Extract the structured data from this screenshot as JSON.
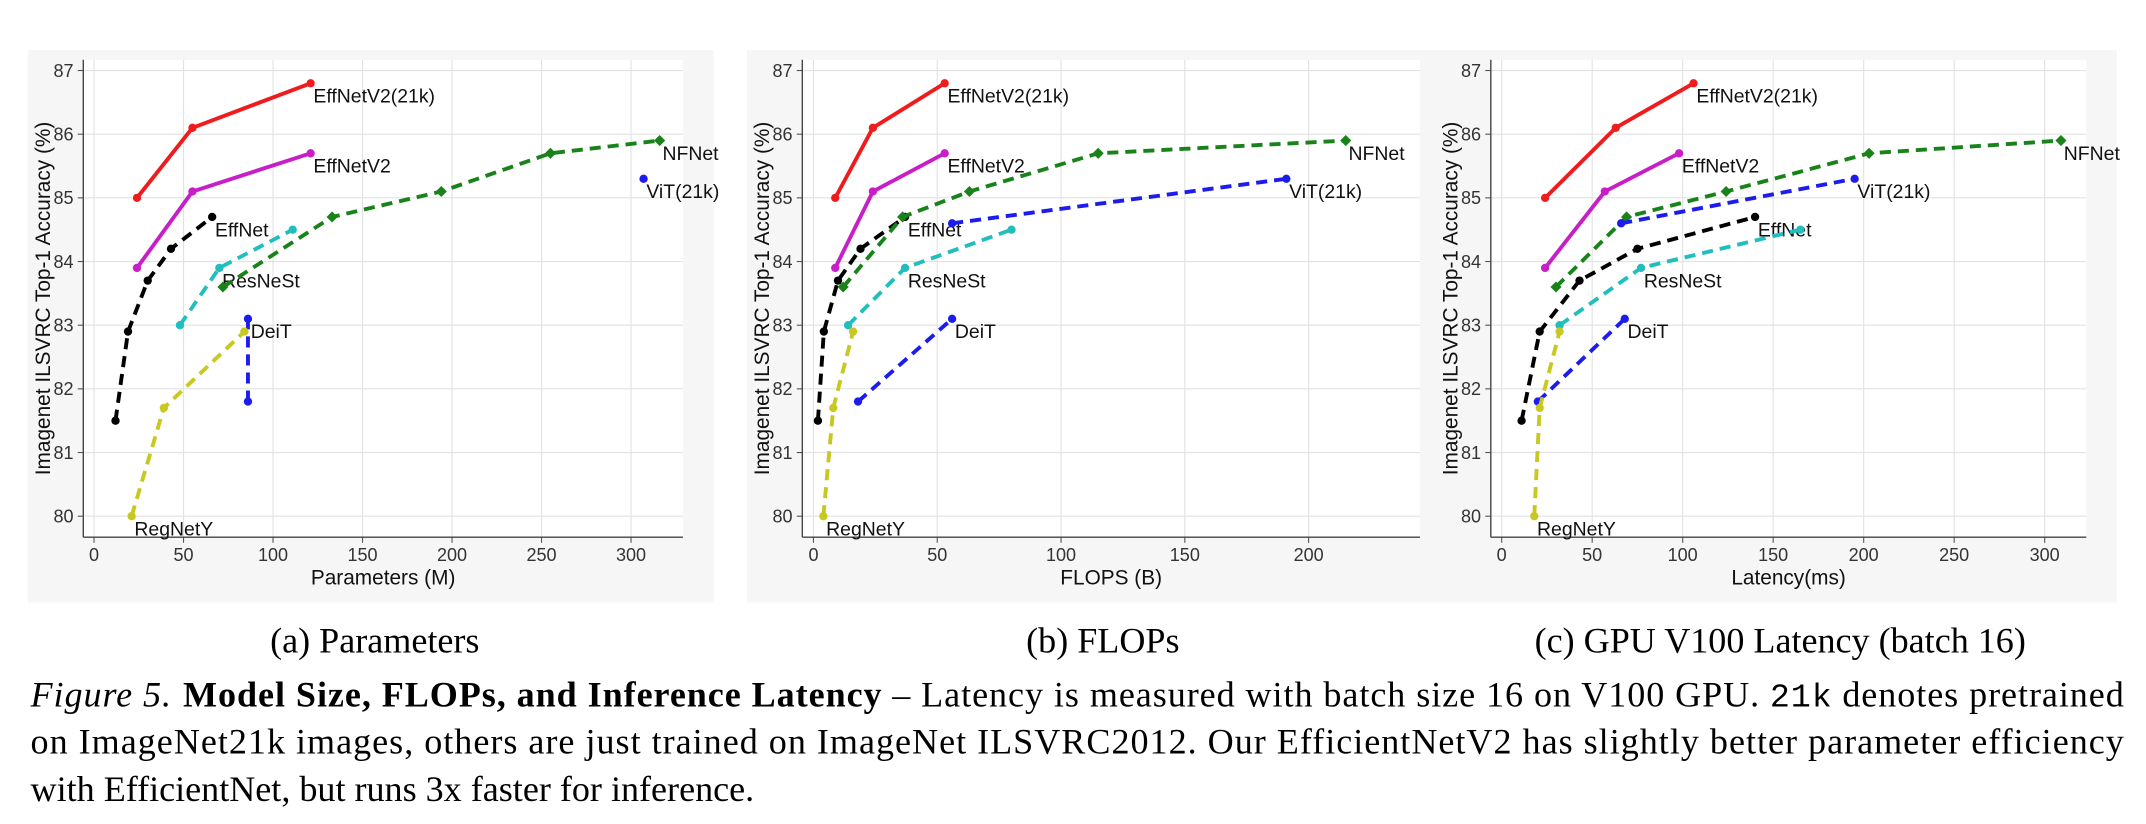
{
  "chart_data": [
    {
      "type": "line",
      "caption": "(a) Parameters",
      "xlabel": "Parameters (M)",
      "ylabel": "Imagenet ILSVRC Top-1 Accuracy (%)",
      "xlim": [
        -6,
        329
      ],
      "xticks": [
        0,
        50,
        100,
        150,
        200,
        250,
        300
      ],
      "ylim": [
        79.67,
        87.17
      ],
      "yticks": [
        80,
        81,
        82,
        83,
        84,
        85,
        86,
        87
      ],
      "grid": true,
      "series": [
        {
          "name": "EffNetV2(21k)",
          "color": "#ee1c1c",
          "linestyle": "solid",
          "marker": "circle",
          "x": [
            24,
            55,
            121
          ],
          "values": [
            85.0,
            86.1,
            86.8
          ]
        },
        {
          "name": "EffNetV2",
          "color": "#c81ec8",
          "linestyle": "solid",
          "marker": "circle",
          "x": [
            24,
            55,
            121
          ],
          "values": [
            83.9,
            85.1,
            85.7
          ]
        },
        {
          "name": "EffNet",
          "color": "#000000",
          "linestyle": "dashed",
          "marker": "circle",
          "x": [
            12,
            19,
            30,
            43,
            66
          ],
          "values": [
            81.5,
            82.9,
            83.7,
            84.2,
            84.7
          ]
        },
        {
          "name": "ResNeSt",
          "color": "#22bebe",
          "linestyle": "dashed",
          "marker": "circle",
          "x": [
            48,
            70,
            111
          ],
          "values": [
            83.0,
            83.9,
            84.5
          ]
        },
        {
          "name": "NFNet",
          "color": "#1a821a",
          "linestyle": "dashed",
          "marker": "diamond",
          "x": [
            72,
            133,
            194,
            255,
            316
          ],
          "values": [
            83.6,
            84.7,
            85.1,
            85.7,
            85.9
          ]
        },
        {
          "name": "ViT(21k)",
          "color": "#1c1cee",
          "linestyle": "dashed",
          "marker": "circle",
          "x": [
            307
          ],
          "values": [
            85.3
          ]
        },
        {
          "name": "DeiT",
          "color": "#1c1cee",
          "linestyle": "dashed",
          "marker": "circle",
          "x": [
            86,
            86
          ],
          "values": [
            81.8,
            83.1
          ]
        },
        {
          "name": "RegNetY",
          "color": "#c8c820",
          "linestyle": "dashed",
          "marker": "circle",
          "x": [
            21,
            39,
            84
          ],
          "values": [
            80.0,
            81.7,
            82.9
          ]
        }
      ]
    },
    {
      "type": "line",
      "caption": "(b) FLOPs",
      "xlabel": "FLOPS (B)",
      "ylabel": "Imagenet ILSVRC Top-1 Accuracy (%)",
      "xlim": [
        -4.5,
        245
      ],
      "xticks": [
        0,
        50,
        100,
        150,
        200
      ],
      "ylim": [
        79.67,
        87.17
      ],
      "yticks": [
        80,
        81,
        82,
        83,
        84,
        85,
        86,
        87
      ],
      "grid": true,
      "series": [
        {
          "name": "EffNetV2(21k)",
          "color": "#ee1c1c",
          "linestyle": "solid",
          "marker": "circle",
          "x": [
            8.8,
            24,
            53
          ],
          "values": [
            85.0,
            86.1,
            86.8
          ]
        },
        {
          "name": "EffNetV2",
          "color": "#c81ec8",
          "linestyle": "solid",
          "marker": "circle",
          "x": [
            8.8,
            24,
            53
          ],
          "values": [
            83.9,
            85.1,
            85.7
          ]
        },
        {
          "name": "EffNet",
          "color": "#000000",
          "linestyle": "dashed",
          "marker": "circle",
          "x": [
            1.8,
            4.2,
            9.9,
            19,
            37
          ],
          "values": [
            81.5,
            82.9,
            83.7,
            84.2,
            84.7
          ]
        },
        {
          "name": "ResNeSt",
          "color": "#22bebe",
          "linestyle": "dashed",
          "marker": "circle",
          "x": [
            14,
            37,
            80
          ],
          "values": [
            83.0,
            83.9,
            84.5
          ]
        },
        {
          "name": "NFNet",
          "color": "#1a821a",
          "linestyle": "dashed",
          "marker": "diamond",
          "x": [
            12,
            36,
            63,
            115,
            215
          ],
          "values": [
            83.6,
            84.7,
            85.1,
            85.7,
            85.9
          ]
        },
        {
          "name": "ViT(21k)",
          "color": "#1c1cee",
          "linestyle": "dashed",
          "marker": "circle",
          "x": [
            56,
            191
          ],
          "values": [
            84.6,
            85.3
          ]
        },
        {
          "name": "DeiT",
          "color": "#1c1cee",
          "linestyle": "dashed",
          "marker": "circle",
          "x": [
            18,
            56
          ],
          "values": [
            81.8,
            83.1
          ]
        },
        {
          "name": "RegNetY",
          "color": "#c8c820",
          "linestyle": "dashed",
          "marker": "circle",
          "x": [
            4,
            8,
            16
          ],
          "values": [
            80.0,
            81.7,
            82.9
          ]
        }
      ]
    },
    {
      "type": "line",
      "caption": "(c) GPU V100 Latency (batch 16)",
      "xlabel": "Latency(ms)",
      "ylabel": "Imagenet ILSVRC Top-1 Accuracy (%)",
      "xlim": [
        -6,
        323
      ],
      "xticks": [
        0,
        50,
        100,
        150,
        200,
        250,
        300
      ],
      "ylim": [
        79.67,
        87.17
      ],
      "yticks": [
        80,
        81,
        82,
        83,
        84,
        85,
        86,
        87
      ],
      "grid": true,
      "series": [
        {
          "name": "EffNetV2(21k)",
          "color": "#ee1c1c",
          "linestyle": "solid",
          "marker": "circle",
          "x": [
            24,
            63,
            106
          ],
          "values": [
            85.0,
            86.1,
            86.8
          ]
        },
        {
          "name": "EffNetV2",
          "color": "#c81ec8",
          "linestyle": "solid",
          "marker": "circle",
          "x": [
            24,
            57,
            98
          ],
          "values": [
            83.9,
            85.1,
            85.7
          ]
        },
        {
          "name": "EffNet",
          "color": "#000000",
          "linestyle": "dashed",
          "marker": "circle",
          "x": [
            11,
            21,
            43,
            75,
            140
          ],
          "values": [
            81.5,
            82.9,
            83.7,
            84.2,
            84.7
          ]
        },
        {
          "name": "ResNeSt",
          "color": "#22bebe",
          "linestyle": "dashed",
          "marker": "circle",
          "x": [
            32,
            77,
            165
          ],
          "values": [
            83.0,
            83.9,
            84.5
          ]
        },
        {
          "name": "NFNet",
          "color": "#1a821a",
          "linestyle": "dashed",
          "marker": "diamond",
          "x": [
            30,
            69,
            124,
            203,
            309
          ],
          "values": [
            83.6,
            84.7,
            85.1,
            85.7,
            85.9
          ]
        },
        {
          "name": "ViT(21k)",
          "color": "#1c1cee",
          "linestyle": "dashed",
          "marker": "circle",
          "x": [
            66,
            195
          ],
          "values": [
            84.6,
            85.3
          ]
        },
        {
          "name": "DeiT",
          "color": "#1c1cee",
          "linestyle": "dashed",
          "marker": "circle",
          "x": [
            20,
            68
          ],
          "values": [
            81.8,
            83.1
          ]
        },
        {
          "name": "RegNetY",
          "color": "#c8c820",
          "linestyle": "dashed",
          "marker": "circle",
          "x": [
            18,
            21,
            32
          ],
          "values": [
            80.0,
            81.7,
            82.9
          ]
        }
      ]
    }
  ],
  "figure_caption": {
    "label": "Figure 5.",
    "title": "Model Size, FLOPs, and Inference Latency",
    "text": [
      "– Latency is measured with batch size 16 on V100 GPU.",
      "21k",
      "denotes pretrained",
      "on ImageNet21k images, others are just trained on ImageNet ILSVRC2012. Our EfficientNetV2 has slightly better parameter efficiency",
      "with EfficientNet, but runs 3x faster for inference."
    ]
  }
}
